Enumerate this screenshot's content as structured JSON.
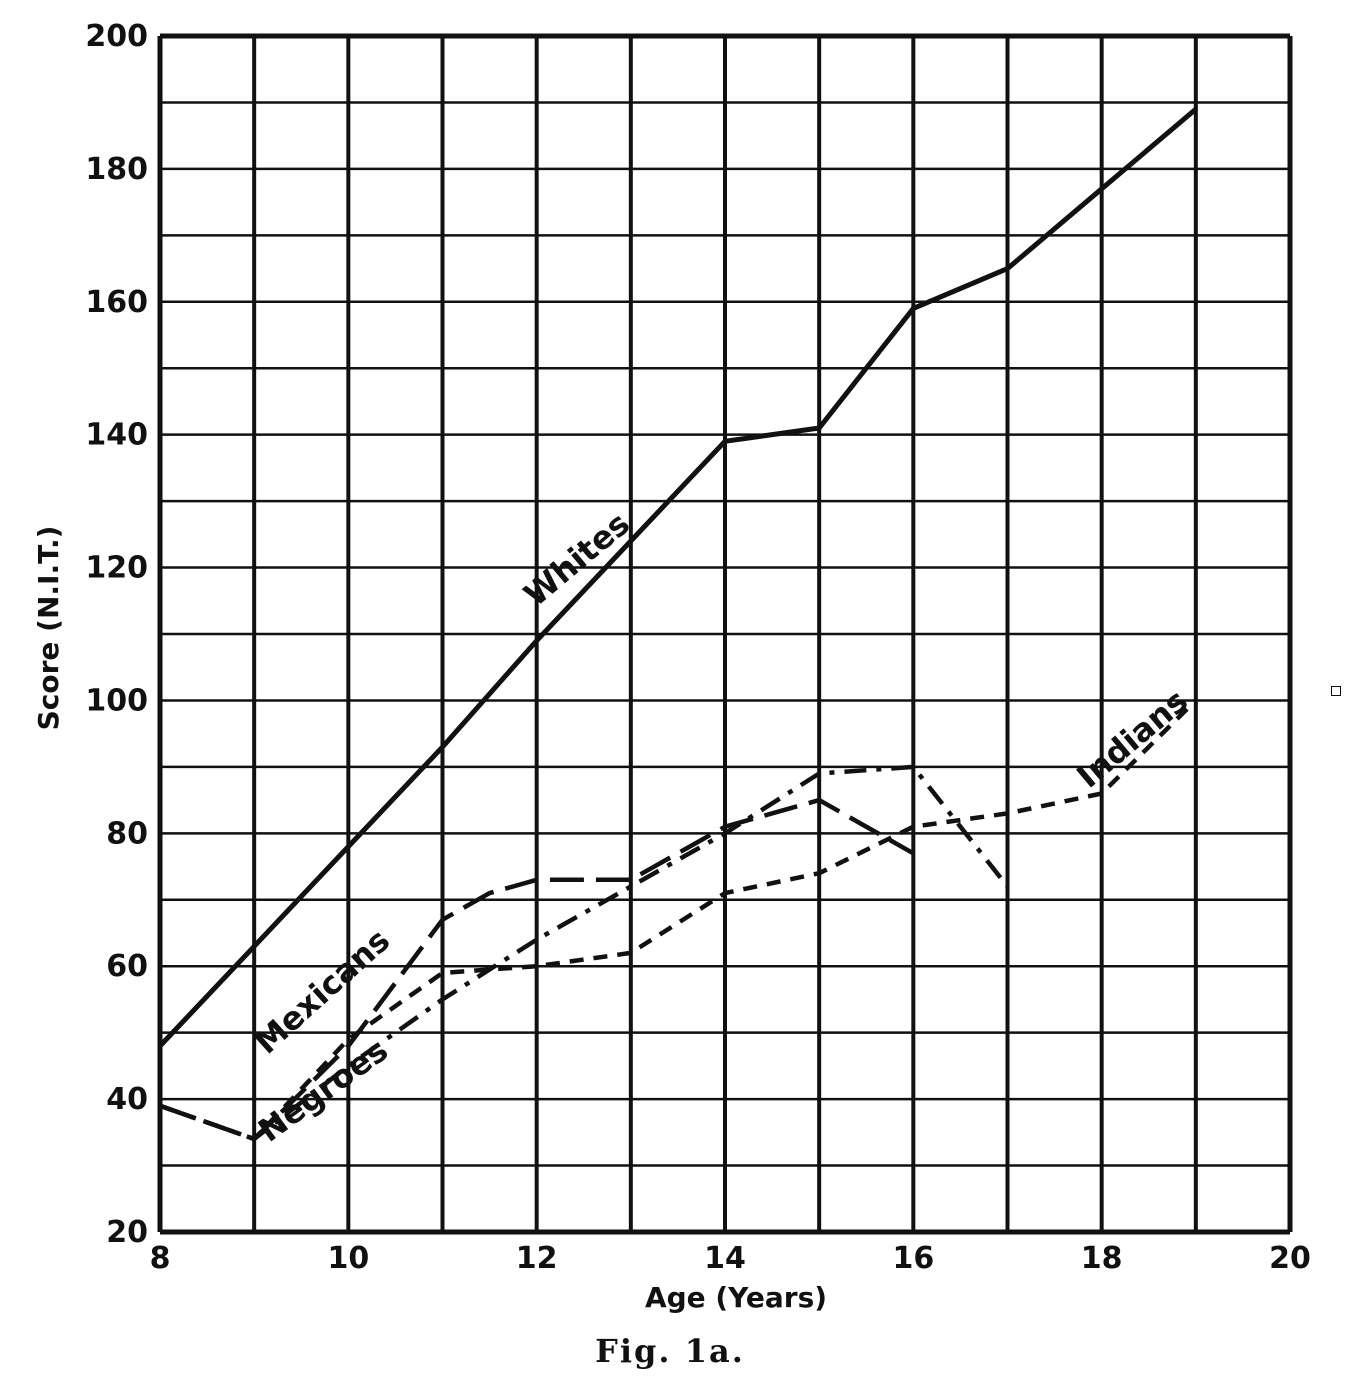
{
  "chart_data": {
    "type": "line",
    "title": "",
    "caption": "Fig. 1a.",
    "xlabel": "Age (Years)",
    "ylabel": "Score (N.I.T.)",
    "xlim": [
      8,
      20
    ],
    "ylim": [
      20,
      200
    ],
    "xticks": [
      8,
      10,
      12,
      14,
      16,
      18,
      20
    ],
    "yticks": [
      20,
      40,
      60,
      80,
      100,
      120,
      140,
      160,
      180,
      200
    ],
    "grid": true,
    "legend": "inline labels on lines",
    "series": [
      {
        "name": "Whites",
        "style": "solid",
        "x": [
          8,
          9,
          10,
          11,
          12,
          13,
          14,
          15,
          16,
          17,
          18,
          19
        ],
        "y": [
          48,
          63,
          78,
          93,
          109,
          124,
          139,
          141,
          159,
          165,
          177,
          189
        ]
      },
      {
        "name": "Mexicans",
        "style": "long-dash",
        "x": [
          8,
          9,
          10,
          11,
          11.5,
          12,
          13,
          14,
          15,
          16
        ],
        "y": [
          39,
          34,
          48,
          67,
          71,
          73,
          73,
          81,
          85,
          77
        ]
      },
      {
        "name": "Negroes",
        "style": "dash-dot",
        "x": [
          8,
          9,
          10,
          11,
          12,
          13,
          14,
          15,
          16,
          17
        ],
        "y": [
          39,
          34,
          45,
          55,
          64,
          72,
          80,
          89,
          90,
          72
        ]
      },
      {
        "name": "Indians",
        "style": "short-dash",
        "x": [
          8,
          9,
          10,
          11,
          12,
          13,
          14,
          15,
          16,
          17,
          18,
          19
        ],
        "y": [
          39,
          34,
          49,
          59,
          60,
          62,
          71,
          74,
          81,
          83,
          86,
          100
        ]
      }
    ]
  }
}
